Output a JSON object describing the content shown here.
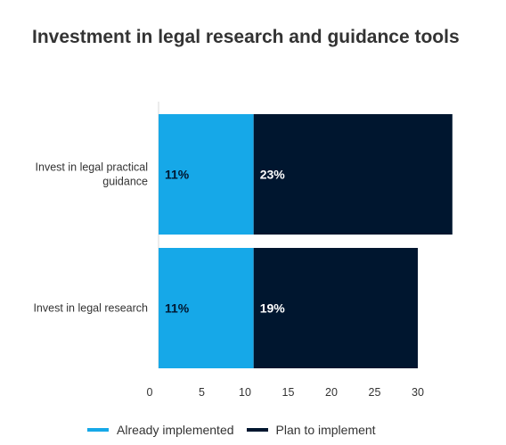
{
  "title": "Investment in legal research and guidance tools",
  "chart_data": {
    "type": "bar",
    "orientation": "horizontal",
    "stacked": true,
    "categories": [
      "Invest in legal practical guidance",
      "Invest in legal research"
    ],
    "series": [
      {
        "name": "Already implemented",
        "values": [
          11,
          11
        ],
        "labels": [
          "11%",
          "11%"
        ],
        "color": "#16a8e8"
      },
      {
        "name": "Plan to implement",
        "values": [
          23,
          19
        ],
        "labels": [
          "23%",
          "19%"
        ],
        "color": "#00162f"
      }
    ],
    "xticks": [
      0,
      5,
      10,
      15,
      20,
      25,
      30
    ],
    "xlim": [
      0,
      35
    ],
    "legend_position": "bottom",
    "grid": false
  },
  "legend": {
    "items": [
      {
        "label": "Already implemented",
        "color": "#16a8e8"
      },
      {
        "label": "Plan to implement",
        "color": "#00162f"
      }
    ]
  }
}
